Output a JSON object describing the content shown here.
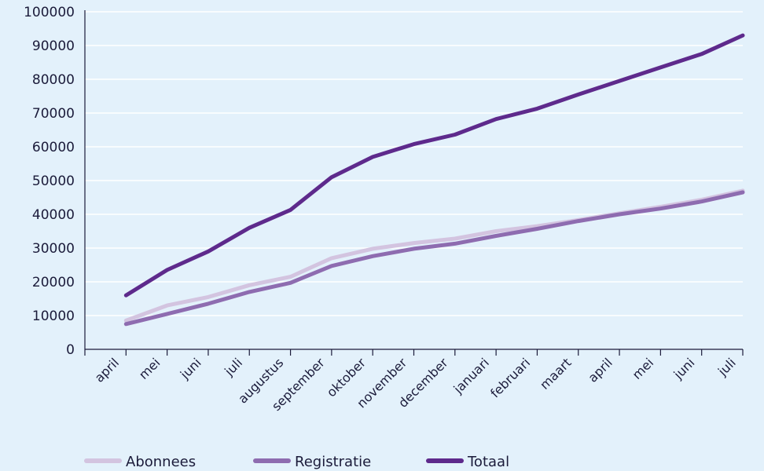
{
  "chart_data": {
    "type": "line",
    "categories": [
      "april",
      "mei",
      "juni",
      "juli",
      "augustus",
      "september",
      "oktober",
      "november",
      "december",
      "januari",
      "februari",
      "maart",
      "april",
      "mei",
      "juni",
      "juli"
    ],
    "y_ticks": [
      "0",
      "10000",
      "20000",
      "30000",
      "40000",
      "50000",
      "60000",
      "70000",
      "80000",
      "90000",
      "100000"
    ],
    "ylim": [
      0,
      100000
    ],
    "grid": "horizontal",
    "legend_position": "bottom",
    "series": [
      {
        "name": "Abonnees",
        "color": "#d3c4e0",
        "values": [
          8500,
          13000,
          15500,
          19000,
          21500,
          27000,
          29800,
          31500,
          32800,
          35000,
          36500,
          38300,
          40300,
          42200,
          44300,
          47000
        ]
      },
      {
        "name": "Registratie",
        "color": "#8e6cb0",
        "values": [
          7500,
          10500,
          13500,
          17000,
          19700,
          24700,
          27600,
          29800,
          31300,
          33600,
          35700,
          38000,
          40000,
          41700,
          43800,
          46500
        ]
      },
      {
        "name": "Totaal",
        "color": "#5e2a8c",
        "values": [
          16000,
          23500,
          29000,
          36000,
          41300,
          51000,
          57000,
          60800,
          63600,
          68200,
          71300,
          75500,
          79500,
          83500,
          87500,
          93000
        ]
      }
    ]
  }
}
